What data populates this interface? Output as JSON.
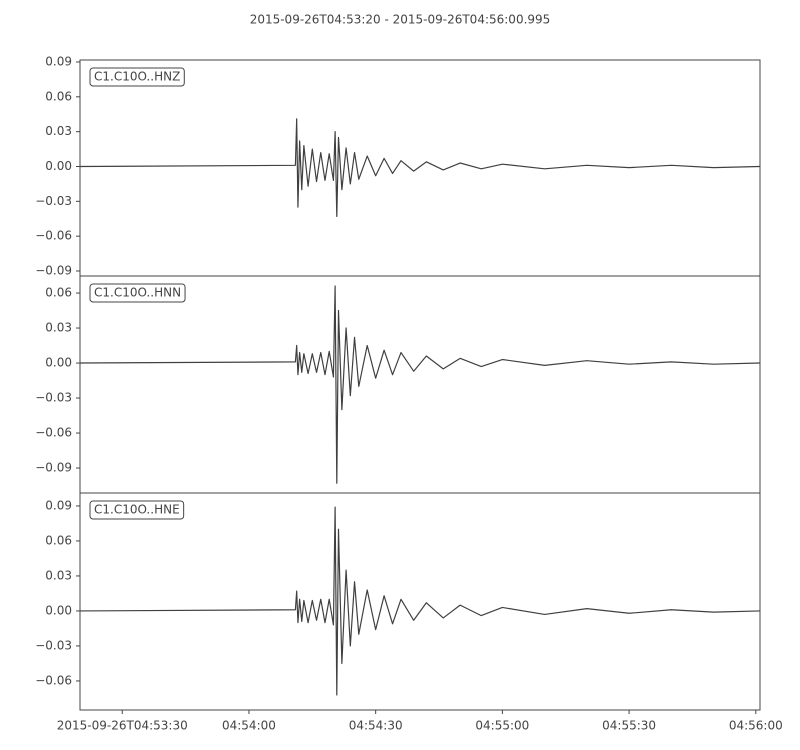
{
  "title": "2015-09-26T04:53:20  -  2015-09-26T04:56:00.995",
  "chart_data": [
    {
      "type": "line",
      "label": "C1.C10O..HNZ",
      "color": "#404040",
      "xlim": [
        "2015-09-26T04:53:20",
        "2015-09-26T04:56:00.995"
      ],
      "ylim": [
        -0.0943,
        0.0917
      ],
      "yticks": [
        {
          "value": -0.09,
          "label": "−0.09"
        },
        {
          "value": -0.06,
          "label": "−0.06"
        },
        {
          "value": -0.03,
          "label": "−0.03"
        },
        {
          "value": 0,
          "label": "0.00"
        },
        0.03,
        0.06,
        0.09
      ],
      "x": [
        "2015-09-26T04:53:20",
        "2015-09-26T04:54:11",
        "2015-09-26T04:54:11.3",
        "2015-09-26T04:54:11.6",
        "2015-09-26T04:54:12",
        "2015-09-26T04:54:12.5",
        "2015-09-26T04:54:13",
        "2015-09-26T04:54:14",
        "2015-09-26T04:54:15",
        "2015-09-26T04:54:16",
        "2015-09-26T04:54:17",
        "2015-09-26T04:54:18",
        "2015-09-26T04:54:19",
        "2015-09-26T04:54:20",
        "2015-09-26T04:54:20.4",
        "2015-09-26T04:54:20.8",
        "2015-09-26T04:54:21.2",
        "2015-09-26T04:54:22",
        "2015-09-26T04:54:23",
        "2015-09-26T04:54:24",
        "2015-09-26T04:54:25",
        "2015-09-26T04:54:26",
        "2015-09-26T04:54:28",
        "2015-09-26T04:54:30",
        "2015-09-26T04:54:32",
        "2015-09-26T04:54:34",
        "2015-09-26T04:54:36",
        "2015-09-26T04:54:39",
        "2015-09-26T04:54:42",
        "2015-09-26T04:54:46",
        "2015-09-26T04:54:50",
        "2015-09-26T04:54:55",
        "2015-09-26T04:55:00",
        "2015-09-26T04:55:10",
        "2015-09-26T04:55:20",
        "2015-09-26T04:55:30",
        "2015-09-26T04:55:40",
        "2015-09-26T04:55:50",
        "2015-09-26T04:56:00.9"
      ],
      "values": [
        0,
        0.001,
        0.041,
        -0.035,
        0.022,
        -0.02,
        0.018,
        -0.017,
        0.015,
        -0.013,
        0.012,
        -0.012,
        0.011,
        -0.012,
        0.03,
        -0.043,
        0.025,
        -0.02,
        0.016,
        -0.015,
        0.012,
        -0.011,
        0.009,
        -0.008,
        0.007,
        -0.006,
        0.005,
        -0.004,
        0.004,
        -0.003,
        0.003,
        -0.002,
        0.002,
        -0.002,
        0.001,
        -0.001,
        0.001,
        -0.001,
        0
      ]
    },
    {
      "type": "line",
      "label": "C1.C10O..HNN",
      "color": "#404040",
      "xlim": [
        "2015-09-26T04:53:20",
        "2015-09-26T04:56:00.995"
      ],
      "ylim": [
        -0.1114,
        0.0746
      ],
      "yticks": [
        {
          "value": -0.09,
          "label": "−0.09"
        },
        {
          "value": -0.06,
          "label": "−0.06"
        },
        {
          "value": -0.03,
          "label": "−0.03"
        },
        {
          "value": 0,
          "label": "0.00"
        },
        0.03,
        0.06
      ],
      "x": [
        "2015-09-26T04:53:20",
        "2015-09-26T04:54:11",
        "2015-09-26T04:54:11.3",
        "2015-09-26T04:54:11.6",
        "2015-09-26T04:54:12",
        "2015-09-26T04:54:12.5",
        "2015-09-26T04:54:13",
        "2015-09-26T04:54:14",
        "2015-09-26T04:54:15",
        "2015-09-26T04:54:16",
        "2015-09-26T04:54:17",
        "2015-09-26T04:54:18",
        "2015-09-26T04:54:19",
        "2015-09-26T04:54:20",
        "2015-09-26T04:54:20.4",
        "2015-09-26T04:54:20.8",
        "2015-09-26T04:54:21.2",
        "2015-09-26T04:54:22",
        "2015-09-26T04:54:23",
        "2015-09-26T04:54:24",
        "2015-09-26T04:54:25",
        "2015-09-26T04:54:26",
        "2015-09-26T04:54:28",
        "2015-09-26T04:54:30",
        "2015-09-26T04:54:32",
        "2015-09-26T04:54:34",
        "2015-09-26T04:54:36",
        "2015-09-26T04:54:39",
        "2015-09-26T04:54:42",
        "2015-09-26T04:54:46",
        "2015-09-26T04:54:50",
        "2015-09-26T04:54:55",
        "2015-09-26T04:55:00",
        "2015-09-26T04:55:10",
        "2015-09-26T04:55:20",
        "2015-09-26T04:55:30",
        "2015-09-26T04:55:40",
        "2015-09-26T04:55:50",
        "2015-09-26T04:56:00.9"
      ],
      "values": [
        0,
        0.001,
        0.015,
        -0.01,
        0.009,
        -0.008,
        0.008,
        -0.009,
        0.008,
        -0.008,
        0.009,
        -0.01,
        0.01,
        -0.012,
        0.066,
        -0.103,
        0.045,
        -0.04,
        0.03,
        -0.028,
        0.022,
        -0.02,
        0.015,
        -0.013,
        0.011,
        -0.01,
        0.009,
        -0.007,
        0.006,
        -0.005,
        0.004,
        -0.003,
        0.003,
        -0.002,
        0.002,
        -0.001,
        0.001,
        -0.001,
        0
      ]
    },
    {
      "type": "line",
      "label": "C1.C10O..HNE",
      "color": "#404040",
      "xlim": [
        "2015-09-26T04:53:20",
        "2015-09-26T04:56:00.995"
      ],
      "ylim": [
        -0.0849,
        0.1011
      ],
      "yticks": [
        {
          "value": -0.06,
          "label": "−0.06"
        },
        {
          "value": -0.03,
          "label": "−0.03"
        },
        {
          "value": 0,
          "label": "0.00"
        },
        0.03,
        0.06,
        0.09
      ],
      "xticks": [
        "2015-09-26T04:53:30",
        {
          "value": "2015-09-26T04:54:00",
          "label": "04:54:00"
        },
        {
          "value": "2015-09-26T04:54:30",
          "label": "04:54:30"
        },
        {
          "value": "2015-09-26T04:55:00",
          "label": "04:55:00"
        },
        {
          "value": "2015-09-26T04:55:30",
          "label": "04:55:30"
        },
        {
          "value": "2015-09-26T04:56:00",
          "label": "04:56:00"
        }
      ],
      "x": [
        "2015-09-26T04:53:20",
        "2015-09-26T04:54:11",
        "2015-09-26T04:54:11.3",
        "2015-09-26T04:54:11.6",
        "2015-09-26T04:54:12",
        "2015-09-26T04:54:12.5",
        "2015-09-26T04:54:13",
        "2015-09-26T04:54:14",
        "2015-09-26T04:54:15",
        "2015-09-26T04:54:16",
        "2015-09-26T04:54:17",
        "2015-09-26T04:54:18",
        "2015-09-26T04:54:19",
        "2015-09-26T04:54:20",
        "2015-09-26T04:54:20.4",
        "2015-09-26T04:54:20.8",
        "2015-09-26T04:54:21.2",
        "2015-09-26T04:54:22",
        "2015-09-26T04:54:23",
        "2015-09-26T04:54:24",
        "2015-09-26T04:54:25",
        "2015-09-26T04:54:26",
        "2015-09-26T04:54:28",
        "2015-09-26T04:54:30",
        "2015-09-26T04:54:32",
        "2015-09-26T04:54:34",
        "2015-09-26T04:54:36",
        "2015-09-26T04:54:39",
        "2015-09-26T04:54:42",
        "2015-09-26T04:54:46",
        "2015-09-26T04:54:50",
        "2015-09-26T04:54:55",
        "2015-09-26T04:55:00",
        "2015-09-26T04:55:10",
        "2015-09-26T04:55:20",
        "2015-09-26T04:55:30",
        "2015-09-26T04:55:40",
        "2015-09-26T04:55:50",
        "2015-09-26T04:56:00.9"
      ],
      "values": [
        0,
        0.001,
        0.017,
        -0.01,
        0.01,
        -0.009,
        0.009,
        -0.01,
        0.009,
        -0.008,
        0.01,
        -0.01,
        0.01,
        -0.012,
        0.089,
        -0.072,
        0.07,
        -0.045,
        0.035,
        -0.03,
        0.025,
        -0.02,
        0.018,
        -0.016,
        0.013,
        -0.011,
        0.01,
        -0.008,
        0.007,
        -0.006,
        0.005,
        -0.004,
        0.003,
        -0.003,
        0.002,
        -0.002,
        0.001,
        -0.001,
        0
      ]
    }
  ]
}
